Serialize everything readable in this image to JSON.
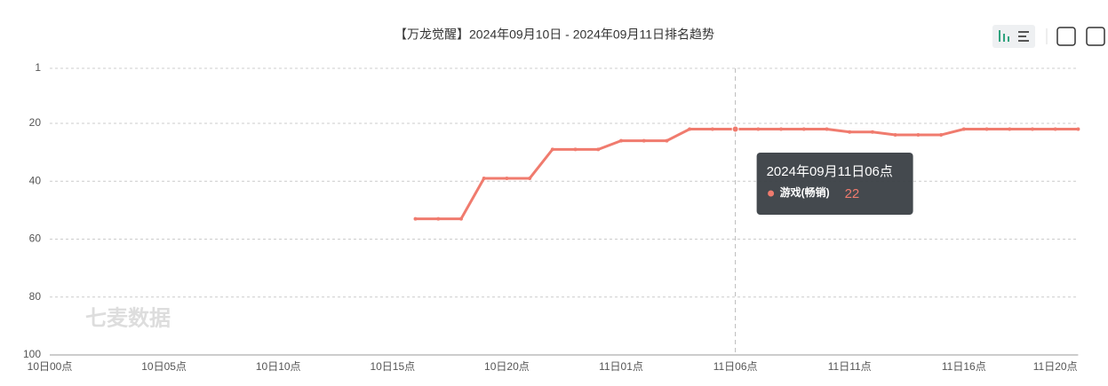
{
  "chart_data": {
    "type": "line",
    "title": "【万龙觉醒】2024年09月10日 - 2024年09月11日排名趋势",
    "categories": [
      "10日00点",
      null,
      null,
      null,
      null,
      "10日05点",
      null,
      null,
      null,
      null,
      "10日10点",
      null,
      null,
      null,
      null,
      "10日15点",
      null,
      null,
      null,
      null,
      "10日20点",
      null,
      null,
      null,
      null,
      "11日01点",
      null,
      null,
      null,
      null,
      "11日06点",
      null,
      null,
      null,
      null,
      "11日11点",
      null,
      null,
      null,
      null,
      "11日16点",
      null,
      null,
      null,
      "11日20点",
      null
    ],
    "series": [
      {
        "name": "游戏(畅销)",
        "color": "#f07b6e",
        "values": [
          null,
          null,
          null,
          null,
          null,
          null,
          null,
          null,
          null,
          null,
          null,
          null,
          null,
          null,
          null,
          null,
          53,
          53,
          53,
          39,
          39,
          39,
          29,
          29,
          29,
          26,
          26,
          26,
          22,
          22,
          22,
          22,
          22,
          22,
          22,
          23,
          23,
          24,
          24,
          24,
          22,
          22,
          22,
          22,
          22,
          22
        ]
      }
    ],
    "ylim": [
      1,
      100
    ],
    "yticks": [
      1,
      20,
      40,
      60,
      80,
      100
    ],
    "y_inverted": true,
    "grid": true,
    "tooltip": {
      "title": "2024年09月11日06点",
      "index": 30
    },
    "watermark": "七麦数据"
  }
}
